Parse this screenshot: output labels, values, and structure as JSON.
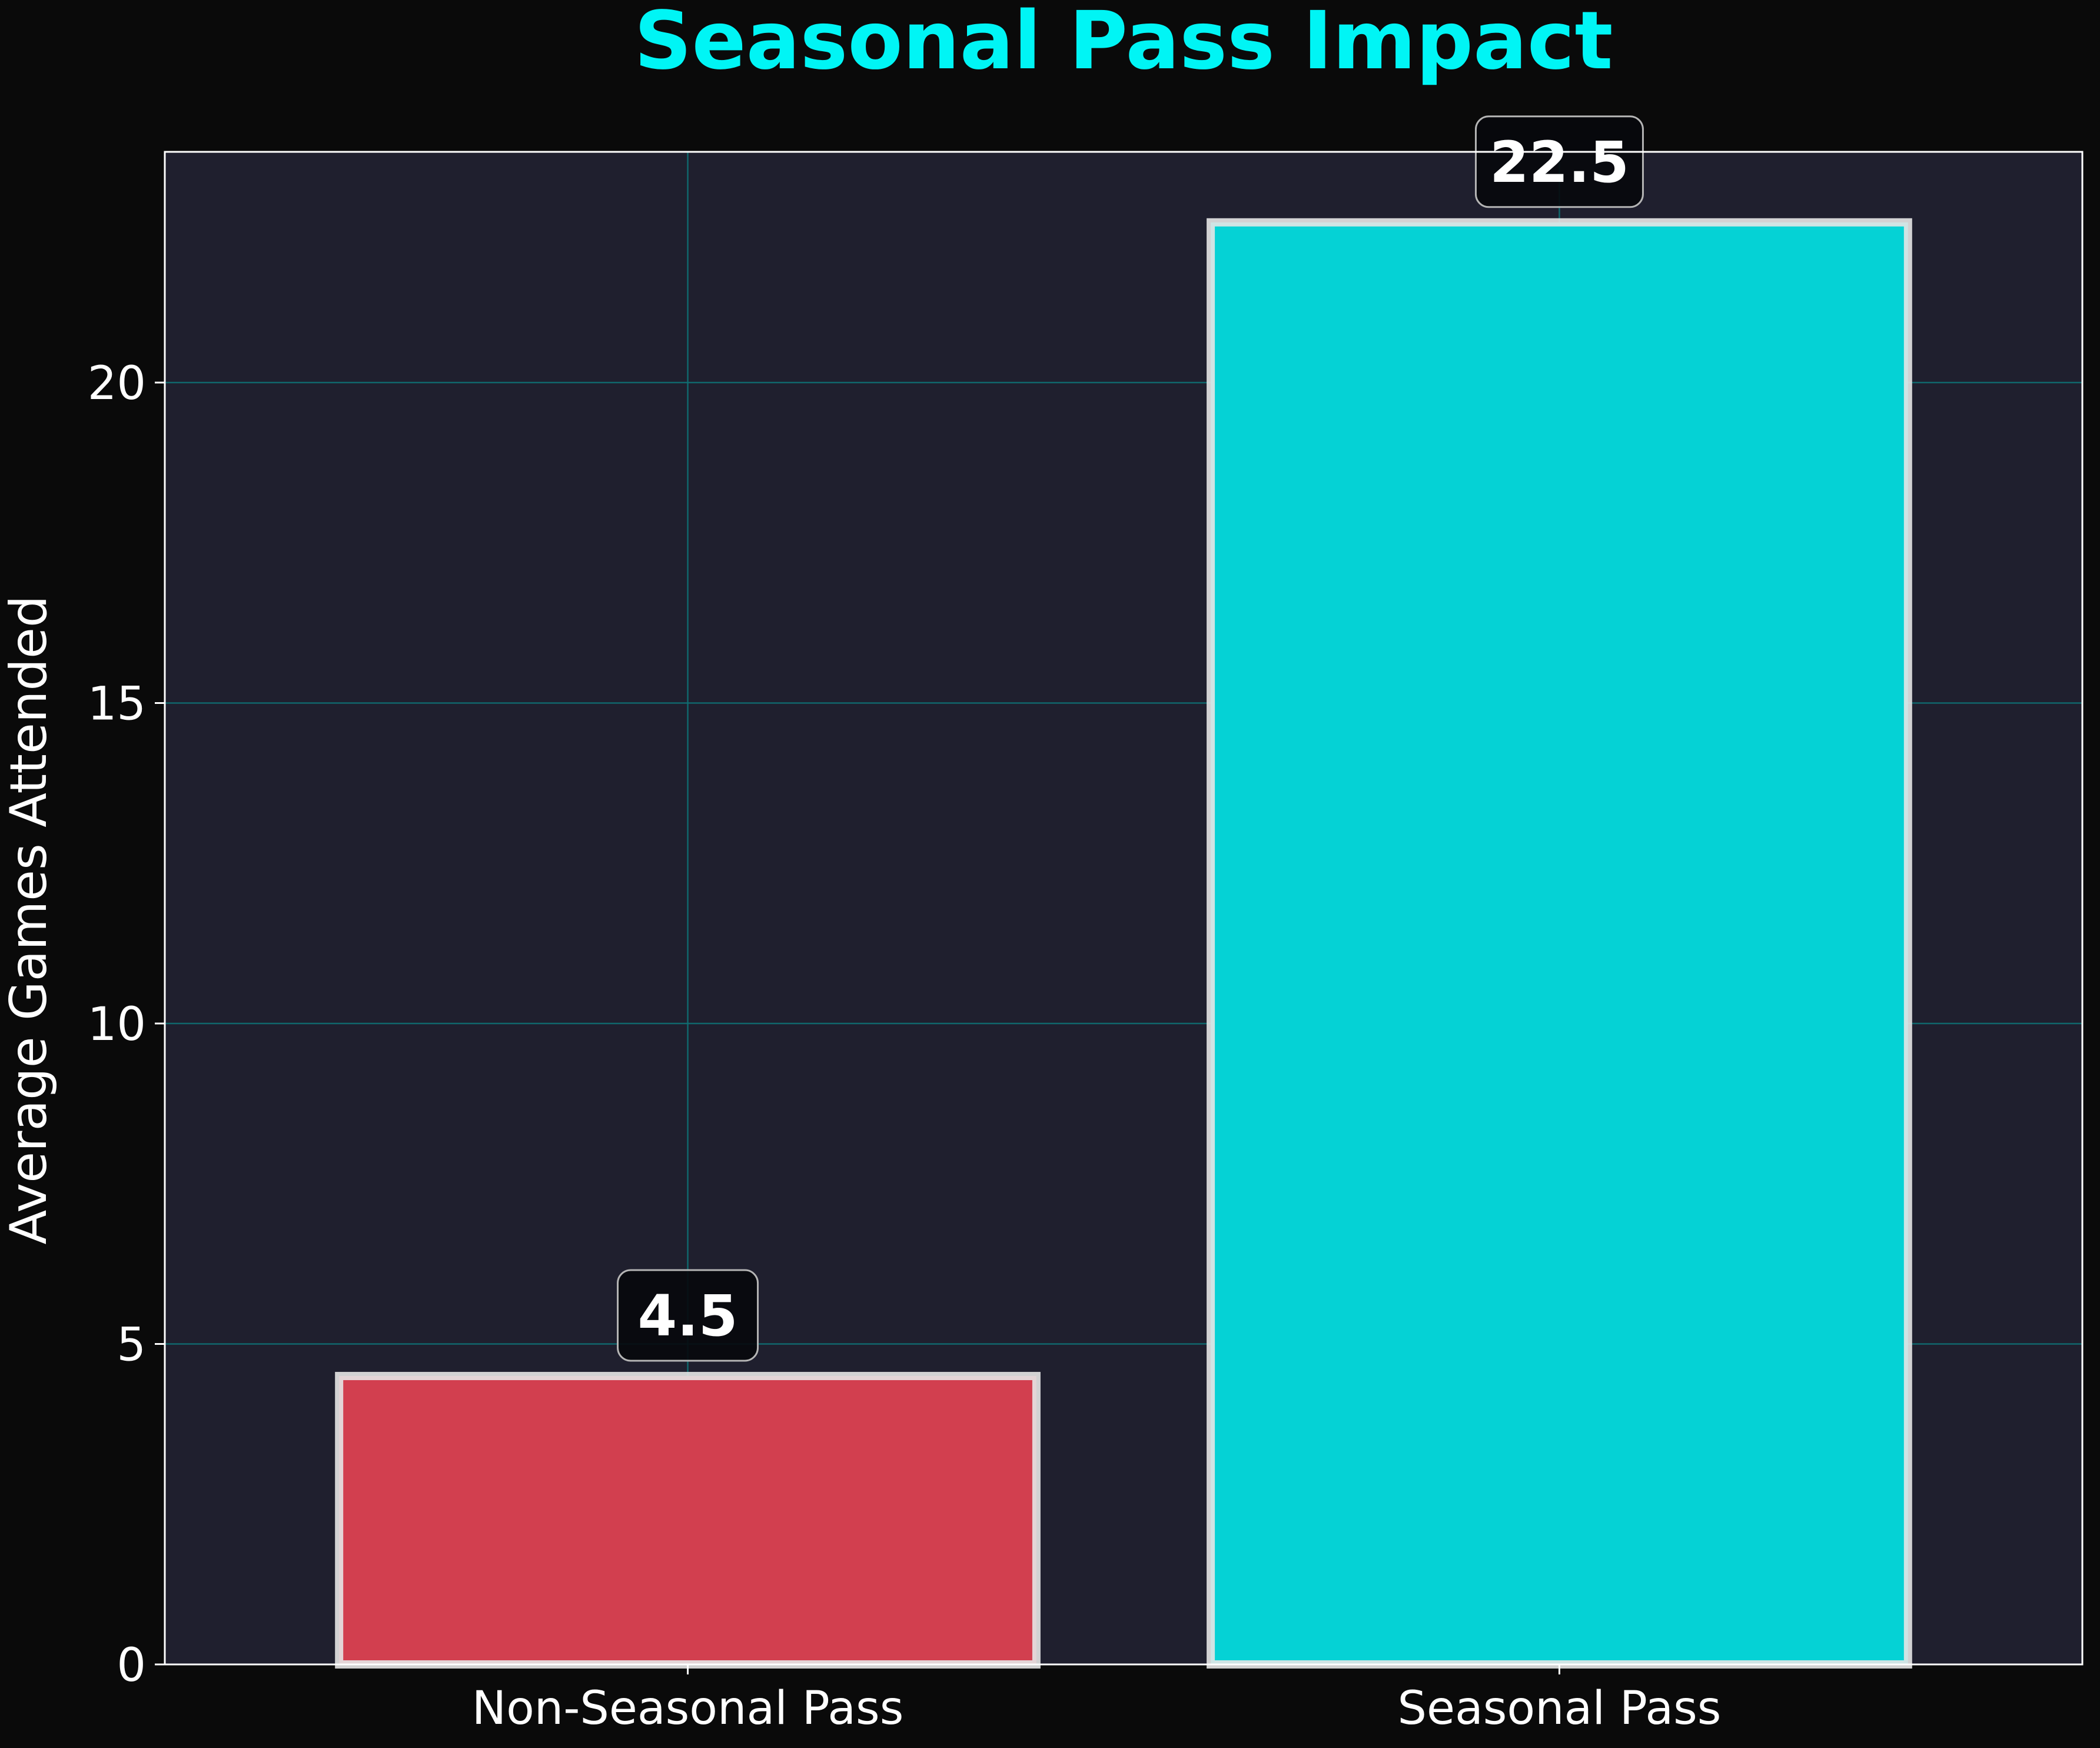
{
  "chart_data": {
    "type": "bar",
    "title": "Seasonal Pass Impact",
    "xlabel": "",
    "ylabel": "Average Games Attended",
    "categories": [
      "Non-Seasonal Pass",
      "Seasonal Pass"
    ],
    "values": [
      4.5,
      22.5
    ],
    "value_labels": [
      "4.5",
      "22.5"
    ],
    "ylim": [
      0,
      23.6
    ],
    "yticks": [
      0,
      5,
      10,
      15,
      20
    ],
    "ytick_labels": [
      "0",
      "5",
      "10",
      "15",
      "20"
    ],
    "grid": true,
    "colors": {
      "figure_background": "#0a0a0a",
      "plot_background": "#1f1f2e",
      "title": "#00f5f5",
      "text": "#ffffff",
      "grid": "#0f6f73",
      "bars": [
        "#d23f4f",
        "#05d2d5"
      ],
      "bar_edge": "#e6e6e6",
      "label_box": "#07080c"
    }
  }
}
